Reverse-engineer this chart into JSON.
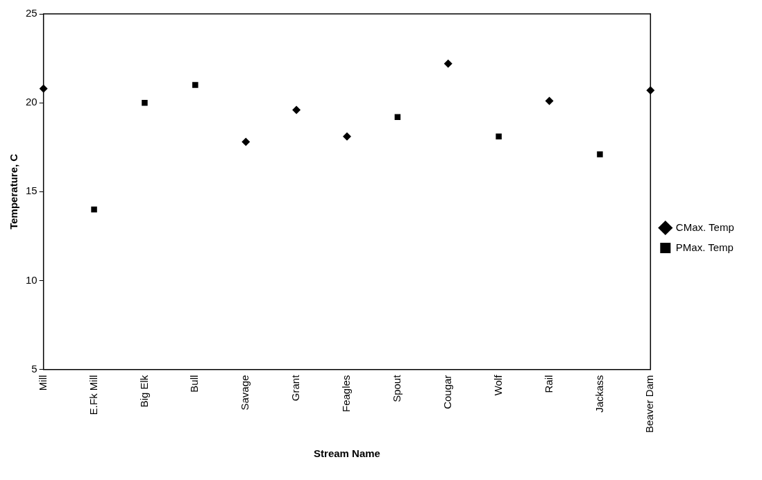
{
  "chart_data": {
    "type": "scatter",
    "xlabel": "Stream Name",
    "ylabel": "Temperature, C",
    "categories": [
      "Mill",
      "E.Fk Mill",
      "Big Elk",
      "Bull",
      "Savage",
      "Grant",
      "Feagles",
      "Spout",
      "Cougar",
      "Wolf",
      "Rail",
      "Jackass",
      "Beaver Dam"
    ],
    "series": [
      {
        "name": "CMax. Temp",
        "color": "#000000",
        "marker": "diamond",
        "values": [
          20.8,
          null,
          null,
          null,
          17.8,
          19.6,
          18.1,
          null,
          22.2,
          null,
          20.1,
          null,
          20.7
        ]
      },
      {
        "name": "PMax. Temp",
        "color": "#000000",
        "marker": "square",
        "values": [
          null,
          14.0,
          20.0,
          21.0,
          null,
          null,
          null,
          19.2,
          null,
          18.1,
          null,
          17.1,
          null
        ]
      }
    ],
    "ylim": [
      5,
      25
    ],
    "yticks": [
      5,
      10,
      15,
      20,
      25
    ],
    "grid": false,
    "legend": "right"
  }
}
